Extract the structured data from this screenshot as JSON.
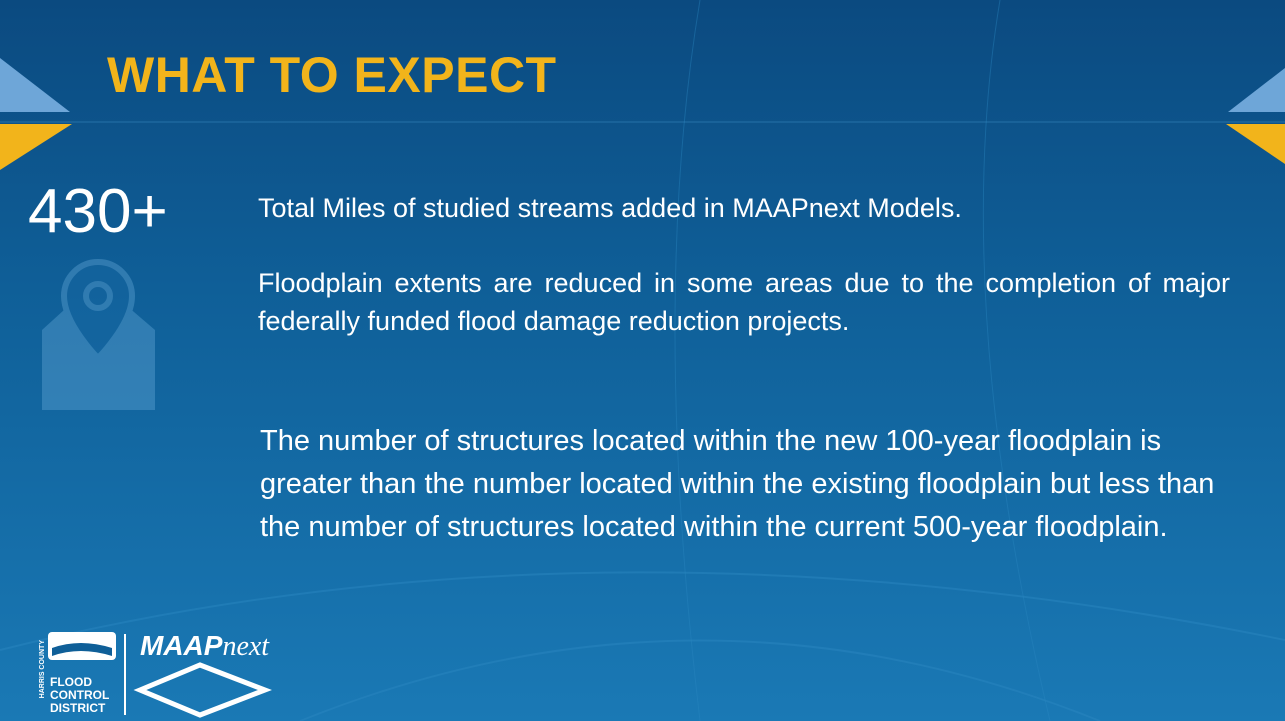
{
  "title": "WHAT TO EXPECT",
  "stat": "430+",
  "paragraphs": [
    "Total Miles of studied streams added in MAAPnext Models.",
    "Floodplain extents are reduced in some areas due to the completion of major federally funded flood damage reduction projects.",
    "The number of structures located within the new 100-year floodplain is greater than the number located within the existing floodplain but less than the number of structures located within the current 500-year floodplain."
  ],
  "logo": {
    "county": "HARRIS COUNTY",
    "lines": [
      "FLOOD",
      "CONTROL",
      "DISTRICT"
    ],
    "brand": "MAAP",
    "brand_suffix": "next"
  }
}
